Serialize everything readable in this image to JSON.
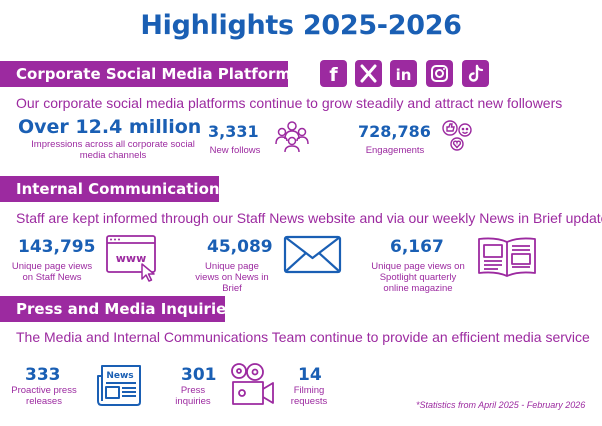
{
  "title": "Highlights 2025-2026",
  "social": {
    "heading": "Corporate Social Media Platforms",
    "lead": "Our corporate social media platforms continue to grow steadily and attract new followers",
    "icons": [
      "facebook-icon",
      "x-icon",
      "linkedin-icon",
      "instagram-icon",
      "tiktok-icon"
    ],
    "impressions_value": "Over 12.4 million",
    "impressions_label": "Impressions across all corporate social media channels",
    "follows_value": "3,331",
    "follows_label": "New follows",
    "engagements_value": "728,786",
    "engagements_label": "Engagements"
  },
  "internal": {
    "heading": "Internal Communications",
    "lead": "Staff are kept informed through our Staff News website and via our weekly News in Brief update",
    "staffnews_value": "143,795",
    "staffnews_label": "Unique page views on Staff News",
    "brief_value": "45,089",
    "brief_label": "Unique page views on News in Brief",
    "spotlight_value": "6,167",
    "spotlight_label": "Unique page views on Spotlight quarterly online magazine"
  },
  "press": {
    "heading": "Press and Media Inquiries",
    "lead": "The Media and Internal Communications Team continue to provide an efficient media service",
    "releases_value": "333",
    "releases_label": "Proactive press releases",
    "news_icon_text": "News",
    "inquiries_value": "301",
    "inquiries_label": "Press inquiries",
    "filming_value": "14",
    "filming_label": "Filming requests"
  },
  "footnote": "*Statistics from April 2025 - February 2026",
  "colors": {
    "blue": "#1a5fb4",
    "purple": "#9c2aa0",
    "white": "#ffffff"
  }
}
